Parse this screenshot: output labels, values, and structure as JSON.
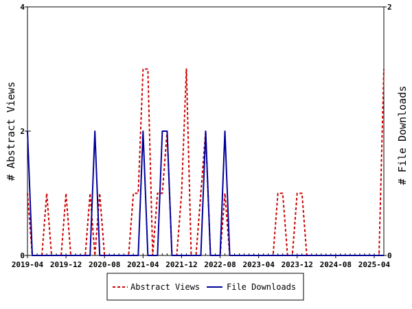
{
  "chart_data": {
    "type": "line",
    "title": "",
    "x_tick_labels": [
      "2019-04",
      "2019-12",
      "2020-08",
      "2021-04",
      "2021-12",
      "2022-08",
      "2023-04",
      "2023-12",
      "2024-08",
      "2025-04"
    ],
    "x_start_month": "2019-04",
    "x_end_month": "2025-06",
    "ylabel_left": "# Abstract Views",
    "ylabel_right": "# File Downloads",
    "ylim_left": [
      0,
      4
    ],
    "ylim_right": [
      0,
      2
    ],
    "yticks_left": [
      "0",
      "2",
      "4"
    ],
    "yticks_right": [
      "0",
      "2"
    ],
    "grid": false,
    "legend_position": "bottom",
    "series": [
      {
        "name": "Abstract Views",
        "axis": "left",
        "color": "#cc0000",
        "style": "dashed",
        "points": [
          [
            "2019-04",
            1
          ],
          [
            "2019-05",
            0
          ],
          [
            "2019-06",
            0
          ],
          [
            "2019-07",
            0
          ],
          [
            "2019-08",
            1
          ],
          [
            "2019-09",
            0
          ],
          [
            "2019-10",
            0
          ],
          [
            "2019-11",
            0
          ],
          [
            "2019-12",
            1
          ],
          [
            "2020-01",
            0
          ],
          [
            "2020-02",
            0
          ],
          [
            "2020-03",
            0
          ],
          [
            "2020-04",
            0
          ],
          [
            "2020-05",
            1
          ],
          [
            "2020-06",
            0
          ],
          [
            "2020-07",
            1
          ],
          [
            "2020-08",
            0
          ],
          [
            "2020-09",
            0
          ],
          [
            "2020-10",
            0
          ],
          [
            "2020-11",
            0
          ],
          [
            "2020-12",
            0
          ],
          [
            "2021-01",
            0
          ],
          [
            "2021-02",
            1
          ],
          [
            "2021-03",
            1
          ],
          [
            "2021-04",
            3
          ],
          [
            "2021-05",
            3
          ],
          [
            "2021-06",
            0
          ],
          [
            "2021-07",
            1
          ],
          [
            "2021-08",
            1
          ],
          [
            "2021-09",
            2
          ],
          [
            "2021-10",
            0
          ],
          [
            "2021-11",
            0
          ],
          [
            "2021-12",
            1
          ],
          [
            "2022-01",
            3
          ],
          [
            "2022-02",
            0
          ],
          [
            "2022-03",
            0
          ],
          [
            "2022-04",
            1
          ],
          [
            "2022-05",
            2
          ],
          [
            "2022-06",
            0
          ],
          [
            "2022-07",
            0
          ],
          [
            "2022-08",
            0
          ],
          [
            "2022-09",
            1
          ],
          [
            "2022-10",
            0
          ],
          [
            "2022-11",
            0
          ],
          [
            "2022-12",
            0
          ],
          [
            "2023-01",
            0
          ],
          [
            "2023-02",
            0
          ],
          [
            "2023-03",
            0
          ],
          [
            "2023-04",
            0
          ],
          [
            "2023-05",
            0
          ],
          [
            "2023-06",
            0
          ],
          [
            "2023-07",
            0
          ],
          [
            "2023-08",
            1
          ],
          [
            "2023-09",
            1
          ],
          [
            "2023-10",
            0
          ],
          [
            "2023-11",
            0
          ],
          [
            "2023-12",
            1
          ],
          [
            "2024-01",
            1
          ],
          [
            "2024-02",
            0
          ],
          [
            "2024-03",
            0
          ],
          [
            "2024-04",
            0
          ],
          [
            "2024-05",
            0
          ],
          [
            "2024-06",
            0
          ],
          [
            "2024-07",
            0
          ],
          [
            "2024-08",
            0
          ],
          [
            "2024-09",
            0
          ],
          [
            "2024-10",
            0
          ],
          [
            "2024-11",
            0
          ],
          [
            "2024-12",
            0
          ],
          [
            "2025-01",
            0
          ],
          [
            "2025-02",
            0
          ],
          [
            "2025-03",
            0
          ],
          [
            "2025-04",
            0
          ],
          [
            "2025-05",
            0
          ],
          [
            "2025-06",
            3
          ]
        ]
      },
      {
        "name": "File Downloads",
        "axis": "right",
        "color": "#000099",
        "style": "solid",
        "points": [
          [
            "2019-04",
            1
          ],
          [
            "2019-05",
            0
          ],
          [
            "2019-06",
            0
          ],
          [
            "2019-07",
            0
          ],
          [
            "2019-08",
            0
          ],
          [
            "2019-09",
            0
          ],
          [
            "2019-10",
            0
          ],
          [
            "2019-11",
            0
          ],
          [
            "2019-12",
            0
          ],
          [
            "2020-01",
            0
          ],
          [
            "2020-02",
            0
          ],
          [
            "2020-03",
            0
          ],
          [
            "2020-04",
            0
          ],
          [
            "2020-05",
            0
          ],
          [
            "2020-06",
            1
          ],
          [
            "2020-07",
            0
          ],
          [
            "2020-08",
            0
          ],
          [
            "2020-09",
            0
          ],
          [
            "2020-10",
            0
          ],
          [
            "2020-11",
            0
          ],
          [
            "2020-12",
            0
          ],
          [
            "2021-01",
            0
          ],
          [
            "2021-02",
            0
          ],
          [
            "2021-03",
            0
          ],
          [
            "2021-04",
            1
          ],
          [
            "2021-05",
            0
          ],
          [
            "2021-06",
            0
          ],
          [
            "2021-07",
            0
          ],
          [
            "2021-08",
            1
          ],
          [
            "2021-09",
            1
          ],
          [
            "2021-10",
            0
          ],
          [
            "2021-11",
            0
          ],
          [
            "2021-12",
            0
          ],
          [
            "2022-01",
            0
          ],
          [
            "2022-02",
            0
          ],
          [
            "2022-03",
            0
          ],
          [
            "2022-04",
            0
          ],
          [
            "2022-05",
            1
          ],
          [
            "2022-06",
            0
          ],
          [
            "2022-07",
            0
          ],
          [
            "2022-08",
            0
          ],
          [
            "2022-09",
            1
          ],
          [
            "2022-10",
            0
          ],
          [
            "2022-11",
            0
          ],
          [
            "2022-12",
            0
          ],
          [
            "2023-01",
            0
          ],
          [
            "2023-02",
            0
          ],
          [
            "2023-03",
            0
          ],
          [
            "2023-04",
            0
          ],
          [
            "2023-05",
            0
          ],
          [
            "2023-06",
            0
          ],
          [
            "2023-07",
            0
          ],
          [
            "2023-08",
            0
          ],
          [
            "2023-09",
            0
          ],
          [
            "2023-10",
            0
          ],
          [
            "2023-11",
            0
          ],
          [
            "2023-12",
            0
          ],
          [
            "2024-01",
            0
          ],
          [
            "2024-02",
            0
          ],
          [
            "2024-03",
            0
          ],
          [
            "2024-04",
            0
          ],
          [
            "2024-05",
            0
          ],
          [
            "2024-06",
            0
          ],
          [
            "2024-07",
            0
          ],
          [
            "2024-08",
            0
          ],
          [
            "2024-09",
            0
          ],
          [
            "2024-10",
            0
          ],
          [
            "2024-11",
            0
          ],
          [
            "2024-12",
            0
          ],
          [
            "2025-01",
            0
          ],
          [
            "2025-02",
            0
          ],
          [
            "2025-03",
            0
          ],
          [
            "2025-04",
            0
          ],
          [
            "2025-05",
            0
          ],
          [
            "2025-06",
            0
          ]
        ]
      }
    ],
    "legend": [
      "Abstract Views",
      "File Downloads"
    ]
  }
}
